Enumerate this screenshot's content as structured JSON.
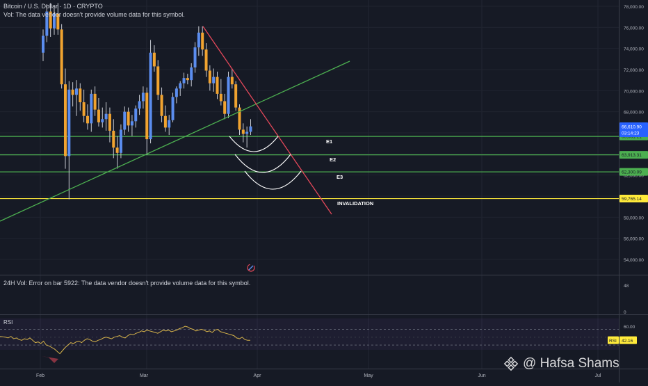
{
  "legend": {
    "symbol": "Bitcoin / U.S. Dollar · 1D · CRYPTO",
    "vol_note": "Vol: The data vendor doesn't provide volume data for this symbol.",
    "vol24_note": "24H Vol: Error on bar 5922: The data vendor doesn't provide volume data for this symbol.",
    "rsi_label": "RSI"
  },
  "watermark": {
    "text": "@ Hafsa Shams"
  },
  "colors": {
    "background": "#161a25",
    "up": "#5b8def",
    "down": "#f0a330",
    "wick": "#c9ccd4",
    "green_line": "#4caf50",
    "red_line": "#e5485a",
    "yellow_line": "#ffeb3b",
    "rsi_line": "#d7b44a",
    "price_badge": "#2962ff"
  },
  "chart_data": [
    {
      "type": "candlestick",
      "title": "Bitcoin / U.S. Dollar · 1D · CRYPTO",
      "xlabel": "",
      "ylabel": "",
      "x_ticks": [
        "Feb",
        "Mar",
        "Apr",
        "May",
        "Jun",
        "Jul"
      ],
      "y_ticks": [
        "54,000.00",
        "56,000.00",
        "58,000.00",
        "60,000.00",
        "62,000.00",
        "64,000.00",
        "66,000.00",
        "68,000.00",
        "70,000.00",
        "72,000.00",
        "74,000.00",
        "76,000.00",
        "78,000.00"
      ],
      "ylim": [
        53000,
        78400
      ],
      "candles": [
        [
          73600,
          75800,
          72800,
          75200
        ],
        [
          75200,
          78200,
          74600,
          77500
        ],
        [
          77500,
          78300,
          75100,
          75900
        ],
        [
          75900,
          77800,
          75300,
          77300
        ],
        [
          77300,
          78300,
          75300,
          75800
        ],
        [
          75800,
          76300,
          70200,
          70600
        ],
        [
          70600,
          72100,
          62600,
          63800
        ],
        [
          63800,
          70900,
          59700,
          70100
        ],
        [
          70100,
          70800,
          68500,
          69600
        ],
        [
          69600,
          71000,
          67600,
          70200
        ],
        [
          70200,
          70700,
          68100,
          68900
        ],
        [
          68900,
          70100,
          67000,
          67600
        ],
        [
          67600,
          68700,
          66300,
          66900
        ],
        [
          66900,
          70100,
          66100,
          69700
        ],
        [
          69700,
          70400,
          67600,
          68200
        ],
        [
          68200,
          69300,
          66600,
          67000
        ],
        [
          67000,
          68400,
          66500,
          67300
        ],
        [
          67300,
          68900,
          66200,
          67800
        ],
        [
          67800,
          68400,
          65100,
          66200
        ],
        [
          66200,
          67300,
          63600,
          64600
        ],
        [
          64600,
          65700,
          62600,
          64100
        ],
        [
          64100,
          66800,
          63600,
          66300
        ],
        [
          66300,
          68500,
          65800,
          68000
        ],
        [
          68000,
          68400,
          66100,
          66700
        ],
        [
          66700,
          67700,
          65700,
          67100
        ],
        [
          67100,
          68600,
          66500,
          68300
        ],
        [
          68300,
          69600,
          67700,
          69000
        ],
        [
          69000,
          70400,
          68300,
          69800
        ],
        [
          69800,
          70300,
          63900,
          65400
        ],
        [
          65400,
          74800,
          65000,
          73600
        ],
        [
          73600,
          74300,
          71800,
          72300
        ],
        [
          72300,
          72900,
          69100,
          69600
        ],
        [
          69600,
          70300,
          67000,
          67600
        ],
        [
          67600,
          68600,
          66100,
          66500
        ],
        [
          66500,
          67700,
          65800,
          67200
        ],
        [
          67200,
          69800,
          67000,
          69400
        ],
        [
          69400,
          70400,
          68800,
          70200
        ],
        [
          70200,
          70900,
          69500,
          70700
        ],
        [
          70700,
          71700,
          70200,
          71200
        ],
        [
          71200,
          71600,
          70600,
          71000
        ],
        [
          71000,
          72600,
          70400,
          72200
        ],
        [
          72200,
          74600,
          71700,
          74100
        ],
        [
          74100,
          76100,
          73300,
          75500
        ],
        [
          75500,
          76100,
          73300,
          73900
        ],
        [
          73900,
          74500,
          71300,
          71900
        ],
        [
          71900,
          72400,
          70000,
          70700
        ],
        [
          70700,
          72100,
          69900,
          71300
        ],
        [
          71300,
          71800,
          69200,
          69700
        ],
        [
          69700,
          71100,
          68600,
          69000
        ],
        [
          69000,
          69700,
          67300,
          67800
        ],
        [
          67800,
          71800,
          67400,
          71300
        ],
        [
          71300,
          72100,
          70200,
          70600
        ],
        [
          70600,
          70900,
          68100,
          68400
        ],
        [
          68400,
          68700,
          65800,
          66300
        ],
        [
          66300,
          66900,
          65100,
          65900
        ],
        [
          65900,
          66600,
          64600,
          66100
        ],
        [
          66100,
          67300,
          65800,
          66611
        ]
      ],
      "overlay_labels": [
        "E1",
        "E2",
        "E3",
        "INVALIDATION"
      ],
      "price_levels": [
        65661.21,
        63913.31,
        62300.09,
        59765.14
      ],
      "price_level_labels": [
        "65,661.21",
        "63,913.31",
        "62,300.09",
        "59,765.14"
      ],
      "last_price": "66,610.90",
      "countdown": "03:14:23"
    },
    {
      "type": "line",
      "title": "RSI",
      "xlabel": "",
      "ylabel": "",
      "y_ticks": [
        "60.00"
      ],
      "ylim": [
        22,
        62
      ],
      "series": [
        {
          "name": "RSI",
          "values": [
            47,
            46.5,
            46,
            45,
            47,
            44,
            45,
            43,
            42,
            44,
            43,
            45,
            42,
            39,
            40,
            38,
            41,
            36,
            35,
            33,
            31,
            28,
            25,
            29,
            33,
            36,
            39,
            38,
            40,
            41,
            39,
            42,
            44,
            43,
            41,
            40,
            42,
            43,
            45,
            46,
            45,
            44,
            46,
            47,
            48,
            46,
            45,
            48,
            50,
            49,
            51,
            52,
            54,
            53,
            55,
            54,
            53,
            52,
            51,
            53,
            55,
            54,
            55,
            53,
            54,
            55,
            57,
            58,
            60,
            59,
            57,
            56,
            54,
            55,
            56,
            55,
            53,
            54,
            52,
            55,
            56,
            53,
            52,
            51,
            50,
            49,
            48,
            45,
            44,
            46,
            43,
            42,
            42.16
          ]
        }
      ],
      "last_value": "42.16"
    },
    {
      "type": "line",
      "title": "24H Vol",
      "y_ticks": [
        "48",
        "0"
      ]
    }
  ]
}
